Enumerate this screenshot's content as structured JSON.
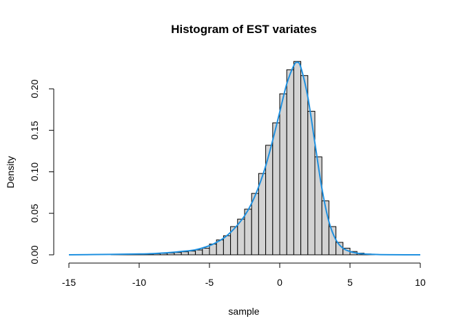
{
  "chart_data": {
    "type": "bar",
    "title": "Histogram of EST variates",
    "xlabel": "sample",
    "ylabel": "Density",
    "xlim": [
      -15,
      10
    ],
    "ylim": [
      0,
      0.23
    ],
    "x_ticks": [
      -15,
      -10,
      -5,
      0,
      5,
      10
    ],
    "x_tick_labels": [
      "-15",
      "-10",
      "-5",
      "0",
      "5",
      "10"
    ],
    "y_ticks": [
      0,
      0.05,
      0.1,
      0.15,
      0.2
    ],
    "y_tick_labels": [
      "0.00",
      "0.05",
      "0.10",
      "0.15",
      "0.20"
    ],
    "grid": false,
    "bin_width": 0.5,
    "bin_starts": [
      -12,
      -11.5,
      -11,
      -10.5,
      -10,
      -9.5,
      -9,
      -8.5,
      -8,
      -7.5,
      -7,
      -6.5,
      -6,
      -5.5,
      -5,
      -4.5,
      -4,
      -3.5,
      -3,
      -2.5,
      -2,
      -1.5,
      -1,
      -0.5,
      0,
      0.5,
      1,
      1.5,
      2,
      2.5,
      3,
      3.5,
      4,
      4.5,
      5,
      5.5,
      6,
      6.5
    ],
    "densities": [
      0.0004,
      0.0005,
      0.0006,
      0.0007,
      0.0008,
      0.001,
      0.0013,
      0.0017,
      0.0022,
      0.0028,
      0.0036,
      0.0045,
      0.0058,
      0.008,
      0.013,
      0.018,
      0.023,
      0.034,
      0.043,
      0.055,
      0.074,
      0.098,
      0.132,
      0.159,
      0.194,
      0.223,
      0.233,
      0.216,
      0.173,
      0.118,
      0.065,
      0.034,
      0.015,
      0.008,
      0.004,
      0.002,
      0.001,
      0.0005
    ],
    "bar_fill": "#d3d3d3",
    "bar_stroke": "#000000",
    "density_curve": {
      "color": "#1e90e0",
      "x": [
        -15,
        -12,
        -10,
        -9,
        -8,
        -7,
        -6,
        -5,
        -4.5,
        -4,
        -3.5,
        -3,
        -2.5,
        -2,
        -1.5,
        -1,
        -0.5,
        0,
        0.5,
        1,
        1.25,
        1.5,
        2,
        2.5,
        3,
        3.5,
        4,
        4.5,
        5,
        5.5,
        6,
        7,
        8,
        10
      ],
      "y": [
        0,
        0.0005,
        0.001,
        0.0015,
        0.0025,
        0.004,
        0.006,
        0.011,
        0.015,
        0.02,
        0.027,
        0.036,
        0.047,
        0.062,
        0.082,
        0.107,
        0.138,
        0.172,
        0.206,
        0.228,
        0.232,
        0.226,
        0.19,
        0.135,
        0.08,
        0.04,
        0.018,
        0.008,
        0.004,
        0.002,
        0.001,
        0.0003,
        0.0001,
        0
      ]
    }
  }
}
